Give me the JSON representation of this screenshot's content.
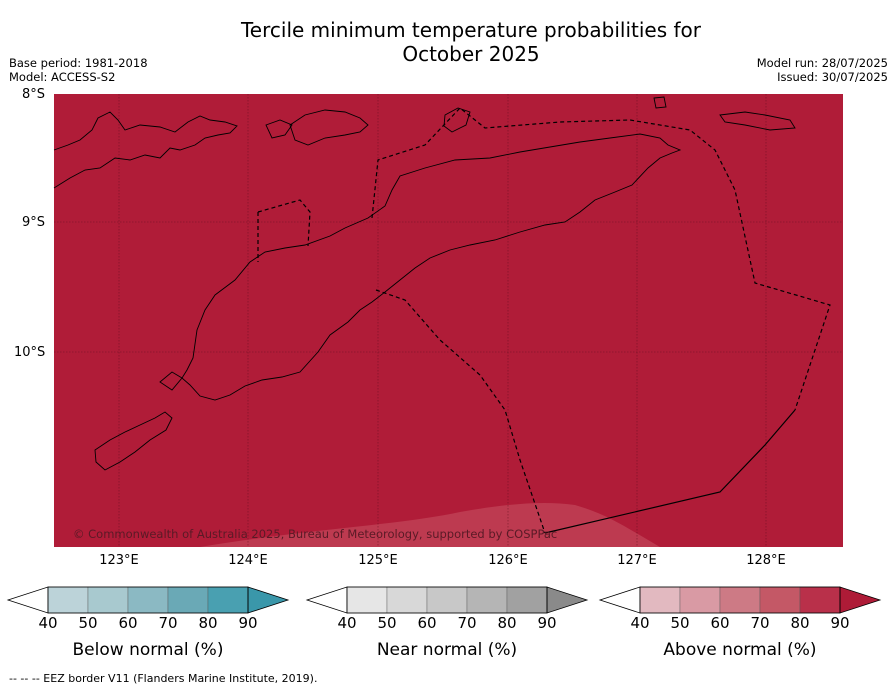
{
  "title_line1": "Tercile minimum temperature probabilities for",
  "title_line2": "October 2025",
  "base_period": "Base period: 1981-2018",
  "model": "Model: ACCESS-S2",
  "model_run": "Model run: 28/07/2025",
  "issued": "Issued: 30/07/2025",
  "lat_labels": [
    "8°S",
    "9°S",
    "10°S"
  ],
  "lon_labels": [
    "123°E",
    "124°E",
    "125°E",
    "126°E",
    "127°E",
    "128°E"
  ],
  "credit": "© Commonwealth of Australia 2025, Bureau of Meteorology, supported by COSPPac",
  "footnote": "--  --  -- EEZ border V11 (Flanders Marine Institute, 2019).",
  "colorbars": [
    {
      "title": "Below normal (%)",
      "ticks": [
        "40",
        "50",
        "60",
        "70",
        "80",
        "90"
      ],
      "colors": [
        "#ffffff",
        "#bcd3d9",
        "#a8c9cf",
        "#8bb9c3",
        "#6aa9b6",
        "#49a0b1",
        "#3a97aa"
      ]
    },
    {
      "title": "Near normal (%)",
      "ticks": [
        "40",
        "50",
        "60",
        "70",
        "80",
        "90"
      ],
      "colors": [
        "#ffffff",
        "#e6e6e6",
        "#d8d8d8",
        "#c8c8c8",
        "#b5b5b5",
        "#a1a1a1",
        "#8a8a8a"
      ]
    },
    {
      "title": "Above normal (%)",
      "ticks": [
        "40",
        "50",
        "60",
        "70",
        "80",
        "90"
      ],
      "colors": [
        "#ffffff",
        "#e2b9c0",
        "#d99aa4",
        "#cd7a85",
        "#c45866",
        "#b9304a",
        "#ae1b37"
      ]
    }
  ],
  "map_fill_color": "#b01c38",
  "map_light_color": "#bd3a50"
}
